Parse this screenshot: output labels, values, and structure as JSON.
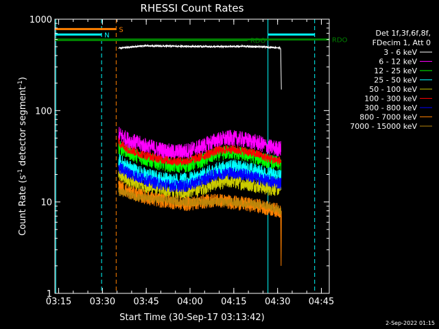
{
  "chart_data": {
    "type": "line",
    "title": "RHESSI Count Rates",
    "xlabel": "Start Time (30-Sep-17 03:13:42)",
    "ylabel_main": "Count Rate (s",
    "ylabel_sup1": "-1",
    "ylabel_mid": " detector segment",
    "ylabel_sup2": "-1",
    "ylabel_end": ")",
    "yscale": "log",
    "ylim": [
      1,
      1000
    ],
    "xlim_minutes": [
      0,
      94
    ],
    "xticks": [
      {
        "label": "03:15",
        "min": 1.3
      },
      {
        "label": "03:30",
        "min": 16.3
      },
      {
        "label": "03:45",
        "min": 31.3
      },
      {
        "label": "04:00",
        "min": 46.3
      },
      {
        "label": "04:15",
        "min": 61.3
      },
      {
        "label": "04:30",
        "min": 76.3
      },
      {
        "label": "04:45",
        "min": 91.3
      }
    ],
    "yticks": [
      {
        "label": "1",
        "value": 1
      },
      {
        "label": "10",
        "value": 10
      },
      {
        "label": "100",
        "value": 100
      },
      {
        "label": "1000",
        "value": 1000
      }
    ],
    "legend": {
      "placement": "right",
      "header": [
        "Det 1f,3f,6f,8f,",
        "FDecim 1, Att 0"
      ],
      "entries": [
        {
          "label": "3 - 6 keV",
          "color": "#000000"
        },
        {
          "label": "6 - 12 keV",
          "color": "#ff00ff"
        },
        {
          "label": "12 - 25 keV",
          "color": "#00ff00"
        },
        {
          "label": "25 - 50 keV",
          "color": "#00ffff"
        },
        {
          "label": "50 - 100 keV",
          "color": "#cccc00"
        },
        {
          "label": "100 - 300 keV",
          "color": "#ff0000"
        },
        {
          "label": "300 - 800 keV",
          "color": "#0000ff"
        },
        {
          "label": "800 - 7000 keV",
          "color": "#ff8000"
        },
        {
          "label": "7000 - 15000 keV",
          "color": "#b8860b"
        }
      ]
    },
    "flags": [
      {
        "label": "S",
        "color": "#ff8000",
        "x_start": 0,
        "x_end": 21,
        "value": 780
      },
      {
        "label": "N",
        "color": "#00ffff",
        "x_start": 0,
        "x_end": 16,
        "value": 680
      },
      {
        "label": "RDO",
        "color": "#008000",
        "x_start": 0,
        "x_end": 94,
        "value": 600
      },
      {
        "label": "RDO",
        "color": "#008000",
        "x_start": 0,
        "x_end": 66,
        "value": 590
      },
      {
        "label": "",
        "color": "#00ffff",
        "x_start": 73,
        "x_end": 89,
        "value": 680
      }
    ],
    "vlines": [
      {
        "color": "#00ffff",
        "style": "solid",
        "min": 0.3
      },
      {
        "color": "#00ffff",
        "style": "dashed",
        "min": 16
      },
      {
        "color": "#ff8000",
        "style": "dashed",
        "min": 21
      },
      {
        "color": "#00ffff",
        "style": "solid",
        "min": 73
      },
      {
        "color": "#00ffff",
        "style": "dashed",
        "min": 89
      }
    ],
    "series": [
      {
        "name": "3 - 6 keV",
        "color": "#000000",
        "x_min": [
          21.8,
          30,
          45,
          55,
          65,
          73,
          76,
          77.4,
          77.6
        ],
        "y": [
          480,
          510,
          505,
          500,
          505,
          495,
          490,
          480,
          170
        ]
      },
      {
        "name": "6 - 12 keV",
        "color": "#ff00ff",
        "x_min": [
          21.8,
          25,
          30,
          35,
          40,
          45,
          50,
          55,
          60,
          65,
          70,
          73,
          77.5
        ],
        "y": [
          55,
          48,
          42,
          38,
          35,
          36,
          40,
          47,
          50,
          48,
          44,
          40,
          38
        ]
      },
      {
        "name": "12 - 25 keV",
        "color": "#00ff00",
        "x_min": [
          21.8,
          25,
          30,
          35,
          40,
          45,
          50,
          55,
          60,
          65,
          70,
          73,
          77.5
        ],
        "y": [
          40,
          35,
          30,
          27,
          25,
          25,
          28,
          33,
          35,
          33,
          30,
          28,
          26
        ]
      },
      {
        "name": "25 - 50 keV",
        "color": "#00ffff",
        "x_min": [
          21.8,
          25,
          30,
          35,
          40,
          45,
          50,
          55,
          60,
          65,
          70,
          73,
          77.5
        ],
        "y": [
          28,
          24,
          20,
          18,
          17,
          17,
          19,
          22,
          24,
          23,
          21,
          20,
          19
        ]
      },
      {
        "name": "50 - 100 keV",
        "color": "#cccc00",
        "x_min": [
          21.8,
          25,
          30,
          35,
          40,
          45,
          50,
          55,
          60,
          65,
          70,
          73,
          77.5
        ],
        "y": [
          20,
          17,
          15,
          14,
          13,
          13,
          14,
          16,
          17,
          16,
          15,
          14,
          14
        ]
      },
      {
        "name": "100 - 300 keV",
        "color": "#ff0000",
        "x_min": [
          21.8,
          25,
          30,
          35,
          40,
          45,
          50,
          55,
          60,
          65,
          70,
          73,
          77.5
        ],
        "y": [
          45,
          38,
          33,
          30,
          28,
          28,
          31,
          36,
          38,
          36,
          33,
          30,
          28
        ]
      },
      {
        "name": "300 - 800 keV",
        "color": "#0000ff",
        "x_min": [
          21.8,
          25,
          30,
          35,
          40,
          45,
          50,
          55,
          60,
          65,
          70,
          73,
          77.5
        ],
        "y": [
          24,
          21,
          18,
          16,
          15,
          15,
          17,
          20,
          21,
          20,
          18,
          17,
          16
        ]
      },
      {
        "name": "800 - 7000 keV",
        "color": "#ff8000",
        "x_min": [
          21.8,
          25,
          30,
          35,
          40,
          45,
          50,
          55,
          60,
          65,
          70,
          73,
          77.4,
          77.5,
          77.6
        ],
        "y": [
          15,
          13,
          11.5,
          10.5,
          10,
          9.5,
          10,
          10.5,
          10,
          9.5,
          9,
          8.5,
          8,
          2,
          8
        ]
      },
      {
        "name": "7000 - 15000 keV",
        "color": "#b8860b",
        "x_min": [
          21.8,
          30,
          45,
          60,
          73,
          77.5
        ],
        "y": [
          13,
          11,
          10,
          10,
          9,
          8
        ]
      }
    ]
  },
  "footer": {
    "date_stamp": "2-Sep-2022 01:15"
  }
}
